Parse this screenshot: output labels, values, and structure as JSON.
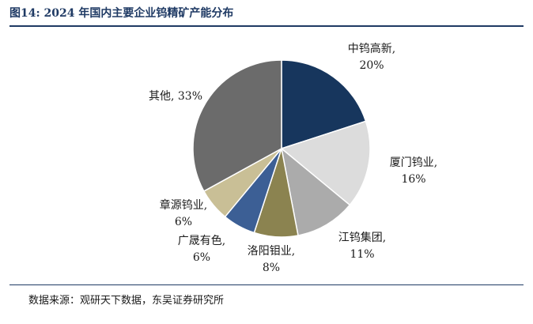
{
  "figure": {
    "title": "图14:  2024 年国内主要企业钨精矿产能分布",
    "source": "数据来源：观研天下数据，东吴证券研究所"
  },
  "chart_data": {
    "type": "pie",
    "title": "图14:  2024 年国内主要企业钨精矿产能分布",
    "start_angle_deg": 0,
    "direction": "clockwise",
    "slices": [
      {
        "label": "中钨高新",
        "value": 20,
        "value_label": "20%",
        "color": "#17365d"
      },
      {
        "label": "厦门钨业",
        "value": 16,
        "value_label": "16%",
        "color": "#dcdcdc"
      },
      {
        "label": "江钨集团",
        "value": 11,
        "value_label": "11%",
        "color": "#ababab"
      },
      {
        "label": "洛阳钼业",
        "value": 8,
        "value_label": "8%",
        "color": "#8b8350"
      },
      {
        "label": "广晟有色",
        "value": 6,
        "value_label": "6%",
        "color": "#3c5f95"
      },
      {
        "label": "章源钨业",
        "value": 6,
        "value_label": "6%",
        "color": "#c9bf96"
      },
      {
        "label": "其他",
        "value": 33,
        "value_label": "33%",
        "color": "#6b6b6b"
      }
    ]
  }
}
